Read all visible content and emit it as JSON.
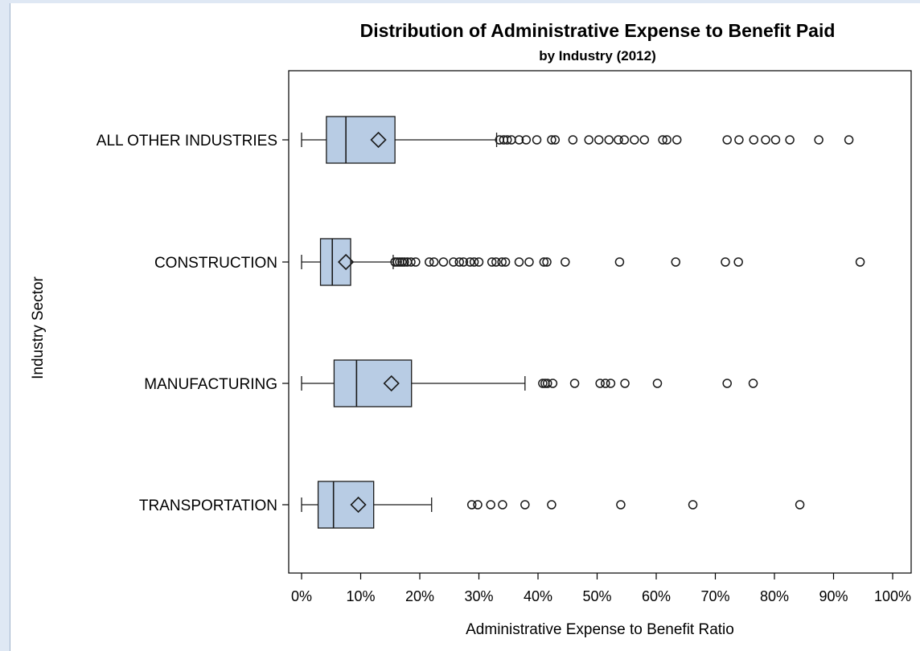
{
  "chart_data": {
    "type": "boxplot",
    "orientation": "horizontal",
    "title": "Distribution of Administrative Expense to Benefit Paid",
    "subtitle": "by Industry (2012)",
    "xlabel": "Administrative Expense to Benefit Ratio",
    "ylabel": "Industry Sector",
    "xlim": [
      0,
      100
    ],
    "x_ticks": [
      "0%",
      "10%",
      "20%",
      "30%",
      "40%",
      "50%",
      "60%",
      "70%",
      "80%",
      "90%",
      "100%"
    ],
    "grid": false,
    "colors": {
      "box_fill": "#b8cce4",
      "box_stroke": "#1a1a1a"
    },
    "categories": [
      {
        "name": "ALL OTHER INDUSTRIES",
        "whisker_low": 0,
        "q1": 4.2,
        "median": 7.5,
        "q3": 15.8,
        "whisker_high": 33,
        "mean": 13,
        "outliers": [
          33.5,
          34.2,
          34.8,
          35.5,
          36.8,
          38,
          39.8,
          42.3,
          42.9,
          45.9,
          48.6,
          50.3,
          52,
          53.6,
          54.6,
          56.3,
          58,
          61.1,
          61.8,
          63.5,
          72,
          74,
          76.5,
          78.5,
          80.2,
          82.6,
          87.5,
          92.6
        ]
      },
      {
        "name": "CONSTRUCTION",
        "whisker_low": 0,
        "q1": 3.2,
        "median": 5.2,
        "q3": 8.3,
        "whisker_high": 15.5,
        "mean": 7.5,
        "outliers": [
          15.8,
          16.2,
          16.6,
          17,
          17.4,
          17.9,
          18.5,
          19.3,
          21.6,
          22.4,
          24,
          25.7,
          26.7,
          27.4,
          28.5,
          29.2,
          30,
          32.2,
          32.9,
          33.9,
          34.5,
          36.8,
          38.5,
          41,
          41.5,
          44.6,
          53.8,
          63.3,
          71.7,
          73.9,
          94.5
        ]
      },
      {
        "name": "MANUFACTURING",
        "whisker_low": 0,
        "q1": 5.5,
        "median": 9.3,
        "q3": 18.6,
        "whisker_high": 37.8,
        "mean": 15.2,
        "outliers": [
          40.8,
          41.2,
          41.6,
          42.5,
          46.2,
          50.5,
          51.4,
          52.3,
          54.7,
          60.2,
          72,
          76.4
        ]
      },
      {
        "name": "TRANSPORTATION",
        "whisker_low": 0,
        "q1": 2.8,
        "median": 5.4,
        "q3": 12.2,
        "whisker_high": 22,
        "mean": 9.6,
        "outliers": [
          28.8,
          29.8,
          32,
          34,
          37.8,
          42.3,
          54,
          66.2,
          84.3
        ]
      }
    ]
  }
}
